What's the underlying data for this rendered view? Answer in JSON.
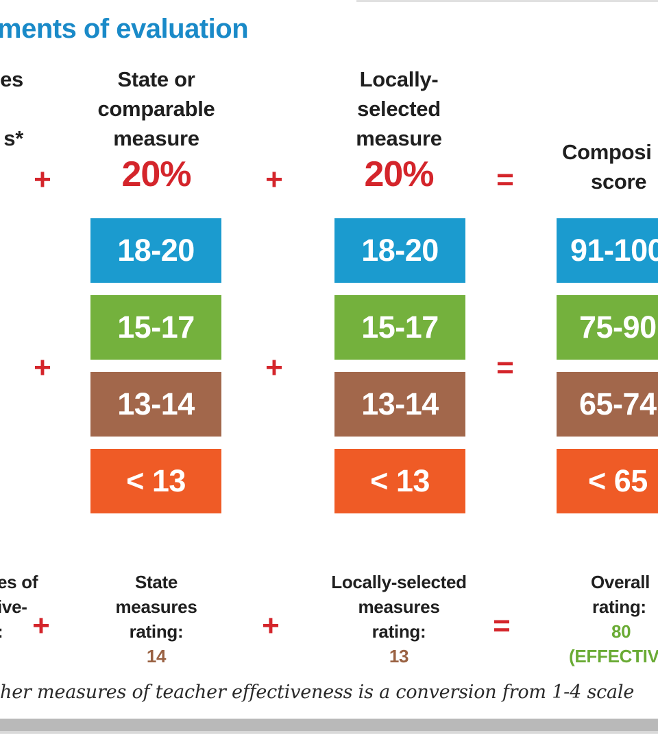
{
  "title": "ments of evaluation",
  "partial_column": {
    "header_lines": [
      "es",
      "s*"
    ],
    "footer_lines": [
      "es of",
      "ive-",
      ":"
    ]
  },
  "columns": [
    {
      "id": "state",
      "header_lines": [
        "State or",
        "comparable",
        "measure"
      ],
      "percent": "20%",
      "ranges": [
        "18-20",
        "15-17",
        "13-14",
        "< 13"
      ],
      "footer_lines": [
        "State",
        "measures",
        "rating:"
      ],
      "footer_value": "14"
    },
    {
      "id": "local",
      "header_lines": [
        "Locally-",
        "selected",
        "measure"
      ],
      "percent": "20%",
      "ranges": [
        "18-20",
        "15-17",
        "13-14",
        "< 13"
      ],
      "footer_lines": [
        "Locally-selected",
        "measures",
        "rating:"
      ],
      "footer_value": "13"
    },
    {
      "id": "composite",
      "header_lines": [
        "Composi",
        "score"
      ],
      "ranges": [
        "91-100",
        "75-90",
        "65-74",
        "< 65"
      ],
      "footer_lines": [
        "Overall",
        "rating:"
      ],
      "footer_value": "80",
      "footer_value_2": "(EFFECTIV"
    }
  ],
  "operators": {
    "plus": "+",
    "equals": "="
  },
  "colors": {
    "title": "#1a8ac8",
    "accent_red": "#d4252b",
    "highly_effective": "#1b9bcf",
    "effective": "#74b13d",
    "developing": "#a2674b",
    "ineffective": "#ef5b26"
  },
  "footnote": "her measures of teacher effectiveness is a conversion from 1-4 scale"
}
